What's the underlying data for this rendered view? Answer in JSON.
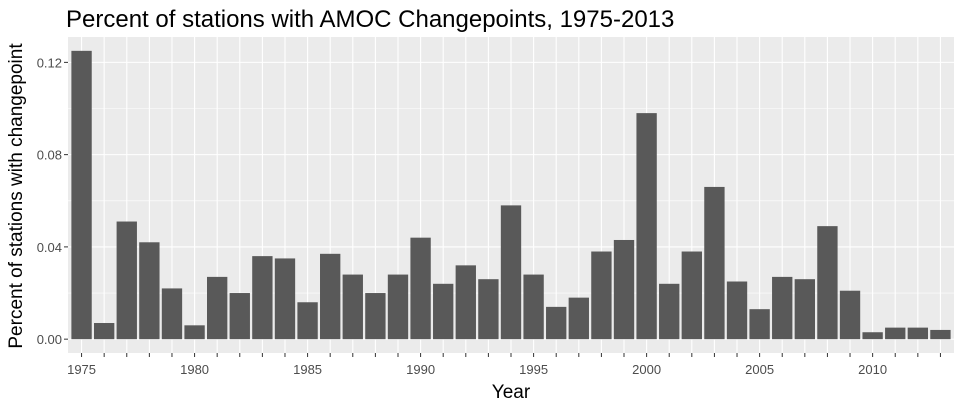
{
  "chart_data": {
    "type": "bar",
    "title": "Percent of stations with AMOC Changepoints, 1975-2013",
    "xlabel": "Year",
    "ylabel": "Percent of stations with changepoint",
    "categories": [
      1975,
      1976,
      1977,
      1978,
      1979,
      1980,
      1981,
      1982,
      1983,
      1984,
      1985,
      1986,
      1987,
      1988,
      1989,
      1990,
      1991,
      1992,
      1993,
      1994,
      1995,
      1996,
      1997,
      1998,
      1999,
      2000,
      2001,
      2002,
      2003,
      2004,
      2005,
      2006,
      2007,
      2008,
      2009,
      2010,
      2011,
      2012,
      2013
    ],
    "values": [
      0.125,
      0.007,
      0.051,
      0.042,
      0.022,
      0.006,
      0.027,
      0.02,
      0.036,
      0.035,
      0.016,
      0.037,
      0.028,
      0.02,
      0.028,
      0.044,
      0.024,
      0.032,
      0.026,
      0.058,
      0.028,
      0.014,
      0.018,
      0.038,
      0.043,
      0.098,
      0.024,
      0.038,
      0.066,
      0.025,
      0.013,
      0.027,
      0.026,
      0.049,
      0.021,
      0.003,
      0.005,
      0.005,
      0.004
    ],
    "ylim": [
      -0.006,
      0.131
    ],
    "xlim": [
      1974.4,
      2013.6
    ],
    "x_ticks": [
      "1975",
      "1980",
      "1985",
      "1990",
      "1995",
      "2000",
      "2005",
      "2010"
    ],
    "y_ticks": [
      "0.00",
      "0.04",
      "0.08",
      "0.12"
    ],
    "grid": true,
    "colors": {
      "panel": "#ebebeb",
      "grid": "#ffffff",
      "bar": "#595959",
      "tick_text": "#4d4d4d"
    }
  }
}
